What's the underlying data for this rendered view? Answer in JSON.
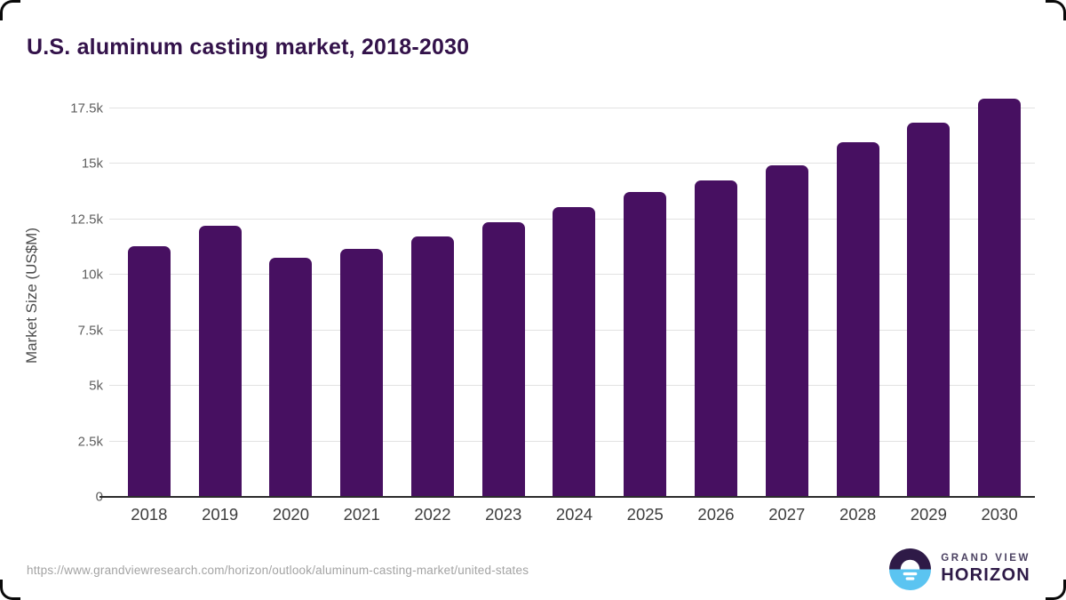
{
  "page": {
    "title": "U.S. aluminum casting market, 2018-2030"
  },
  "chart_data": {
    "type": "bar",
    "title": "U.S. aluminum casting market, 2018-2030",
    "categories": [
      "2018",
      "2019",
      "2020",
      "2021",
      "2022",
      "2023",
      "2024",
      "2025",
      "2026",
      "2027",
      "2028",
      "2029",
      "2030"
    ],
    "values": [
      11290,
      12230,
      10790,
      11190,
      11720,
      12360,
      13070,
      13740,
      14260,
      14940,
      15970,
      16860,
      17930
    ],
    "xlabel": "",
    "ylabel": "Market Size (US$M)",
    "ylim": [
      0,
      18140
    ],
    "yticks": [
      {
        "value": 0,
        "label": "0"
      },
      {
        "value": 2500,
        "label": "2.5k"
      },
      {
        "value": 5000,
        "label": "5k"
      },
      {
        "value": 7500,
        "label": "7.5k"
      },
      {
        "value": 10000,
        "label": "10k"
      },
      {
        "value": 12500,
        "label": "12.5k"
      },
      {
        "value": 15000,
        "label": "15k"
      },
      {
        "value": 17500,
        "label": "17.5k"
      }
    ],
    "grid": true,
    "legend_position": "none",
    "bar_color": "#471061"
  },
  "colors": {
    "title": "#33124a",
    "bar": "#471061",
    "axis_line": "#2b2b2b",
    "gridline": "#e2e2e2",
    "tick_label": "#5f5f5f",
    "x_label": "#3d3d3d",
    "y_axis_title": "#4d4d4d",
    "source_text": "#a3a3a3",
    "logo_purple": "#2e1a47",
    "logo_blue": "#5bc4f1"
  },
  "footer": {
    "source_url": "https://www.grandviewresearch.com/horizon/outlook/aluminum-casting-market/united-states",
    "logo": {
      "mark": "grand-view-horizon-logo",
      "line1": "GRAND VIEW",
      "line2": "HORIZON"
    }
  }
}
